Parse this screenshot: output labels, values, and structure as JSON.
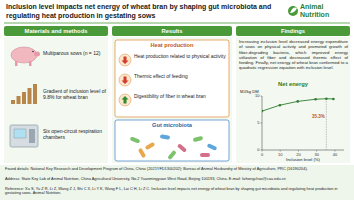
{
  "header": {
    "title": "Inclusion level impacts net energy of wheat bran by shaping gut microbiota and regulating heat production in gestating sows",
    "journal": "Animal Nutrition"
  },
  "materials": {
    "heading": "Materials and methods",
    "items": [
      "Multiparous sows (n = 12)",
      "Gradient of inclusion level of 9.8% for wheat bran",
      "Six open-circuit respiration chambers"
    ]
  },
  "results": {
    "heading": "Results",
    "heat": {
      "title": "Heat production",
      "items": [
        "Heat production related to physical activity",
        "Thermic effect of feeding",
        "Digestibility of fiber in wheat bran"
      ]
    },
    "microbiota": {
      "title": "Gut microbiota"
    }
  },
  "findings": {
    "heading": "Findings",
    "text": "Increasing inclusion level decreased energy expenditure of sows on physical activity and promoted growth of fiber-degrading bacteria, which improved energy utilization of fiber and decreased thermic effect of feeding. Finally, net energy of wheat bran conformed to a quadratic regression equation with inclusion level."
  },
  "chart_data": {
    "type": "line",
    "title": "Net energy",
    "y_label": "MJ/kg DM",
    "x_label": "Inclusion level (%)",
    "x": [
      0,
      9.8,
      19.6,
      29.4,
      35.3,
      39.2
    ],
    "values": [
      7.2,
      8.3,
      9.0,
      9.4,
      9.5,
      9.45
    ],
    "color": "#2e7d32",
    "marker": "circle",
    "xlim": [
      0,
      45
    ],
    "xticks": [
      0,
      10,
      20,
      30,
      40
    ],
    "ylim": [
      0,
      10
    ],
    "yticks": [
      0,
      5,
      10
    ],
    "annotations": [
      {
        "x": 35.3,
        "label": "35.3%"
      }
    ]
  },
  "footer": {
    "funding": "Found details: National Key Research and Development Program of China, China (2021YFD1300202); Bureau of Animal Husbandry of Ministry of Agriculture, PRC (16190204).",
    "address": "Address: State Key Lab of Animal Nutrition, China Agricultural University, No.2 Yuanmingyuan West Road, Beijing 100193, China. E-mail: lizhongchao@cau.edu.cn",
    "reference": "Reference: Xu S, Yu Z R, Li Z, Wang Z J, Shi C X, Li Y K, Wang F L, Lai C H, Li Z C. Inclusion level impacts net energy of wheat bran by shaping gut microbiota and regulating heat production in gestating sows. Animal Nutrition."
  }
}
